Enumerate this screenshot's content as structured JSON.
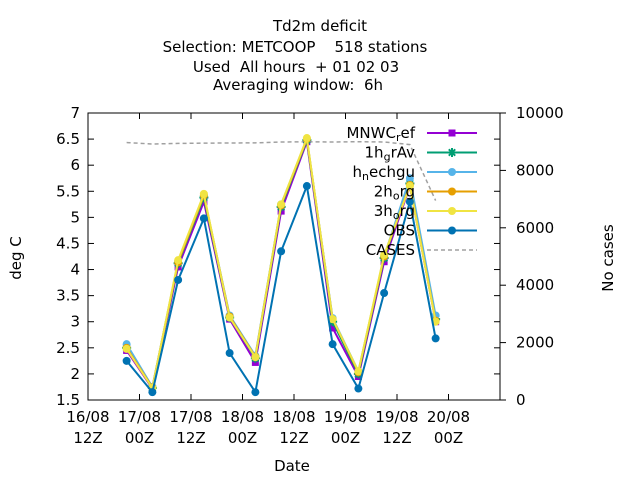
{
  "chart_data": {
    "type": "line",
    "title_lines": [
      "Td2m deficit",
      "Selection: METCOOP    518 stations",
      "Used  All hours  + 01 02 03",
      "Averaging window:  6h"
    ],
    "xlabel": "Date",
    "ylabel": "deg C",
    "y2label": "No cases",
    "xlim": [
      0,
      8
    ],
    "ylim": [
      1.5,
      7
    ],
    "y2lim": [
      0,
      10000
    ],
    "x_ticks": [
      {
        "x": 0,
        "line1": "16/08",
        "line2": "12Z"
      },
      {
        "x": 1,
        "line1": "17/08",
        "line2": "00Z"
      },
      {
        "x": 2,
        "line1": "17/08",
        "line2": "12Z"
      },
      {
        "x": 3,
        "line1": "18/08",
        "line2": "00Z"
      },
      {
        "x": 4,
        "line1": "18/08",
        "line2": "12Z"
      },
      {
        "x": 5,
        "line1": "19/08",
        "line2": "00Z"
      },
      {
        "x": 6,
        "line1": "19/08",
        "line2": "12Z"
      },
      {
        "x": 7,
        "line1": "20/08",
        "line2": "00Z"
      }
    ],
    "y_ticks": [
      1.5,
      2,
      2.5,
      3,
      3.5,
      4,
      4.5,
      5,
      5.5,
      6,
      6.5,
      7
    ],
    "y_tick_labels": [
      "1.5",
      "2",
      "2.5",
      "3",
      "3.5",
      "4",
      "4.5",
      "5",
      "5.5",
      "6",
      "6.5",
      "7"
    ],
    "y2_ticks": [
      0,
      2000,
      4000,
      6000,
      8000,
      10000
    ],
    "y2_tick_labels": [
      "0",
      "2000",
      "4000",
      "6000",
      "8000",
      "10000"
    ],
    "x": [
      0.75,
      1.25,
      1.75,
      2.25,
      2.75,
      3.25,
      3.75,
      4.25,
      4.75,
      5.25,
      5.75,
      6.25,
      6.75
    ],
    "legend_position": "top-right",
    "series": [
      {
        "name": "MNWC_ref",
        "legend_parts": [
          [
            "MNWC",
            false
          ],
          [
            "r",
            true
          ],
          [
            "ef",
            false
          ]
        ],
        "color": "#9400d3",
        "marker": "square",
        "values": [
          2.45,
          1.72,
          4.05,
          5.3,
          3.05,
          2.22,
          5.12,
          6.45,
          2.88,
          1.95,
          4.15,
          5.6,
          3.0
        ]
      },
      {
        "name": "1h_grAv",
        "legend_parts": [
          [
            "1h",
            false
          ],
          [
            "g",
            true
          ],
          [
            "rAv",
            false
          ]
        ],
        "color": "#009e73",
        "marker": "star",
        "values": [
          2.5,
          1.73,
          4.12,
          5.38,
          3.08,
          2.3,
          5.2,
          6.48,
          3.0,
          2.0,
          4.22,
          5.65,
          3.05
        ]
      },
      {
        "name": "h_nechgu",
        "legend_parts": [
          [
            "h",
            false
          ],
          [
            "n",
            true
          ],
          [
            "echgu",
            false
          ]
        ],
        "color": "#56b4e9",
        "marker": "circle",
        "values": [
          2.57,
          1.75,
          4.15,
          5.42,
          3.12,
          2.35,
          5.25,
          6.5,
          3.07,
          2.05,
          4.25,
          5.75,
          3.12
        ]
      },
      {
        "name": "2h_org",
        "legend_parts": [
          [
            "2h",
            false
          ],
          [
            "o",
            true
          ],
          [
            "rg",
            false
          ]
        ],
        "color": "#e69f00",
        "marker": "circle",
        "values": [
          2.5,
          1.74,
          4.14,
          5.42,
          3.1,
          2.33,
          5.23,
          6.5,
          3.05,
          2.03,
          4.25,
          5.62,
          3.02
        ]
      },
      {
        "name": "3h_org",
        "legend_parts": [
          [
            "3h",
            false
          ],
          [
            "o",
            true
          ],
          [
            "rg",
            false
          ]
        ],
        "color": "#f0e442",
        "marker": "circle",
        "values": [
          2.48,
          1.73,
          4.18,
          5.45,
          3.08,
          2.32,
          5.25,
          6.52,
          3.05,
          2.05,
          4.28,
          5.6,
          3.0
        ]
      },
      {
        "name": "OBS",
        "legend_parts": [
          [
            "OBS",
            false
          ]
        ],
        "color": "#0072b2",
        "marker": "circle",
        "values": [
          2.25,
          1.65,
          3.8,
          4.98,
          2.4,
          1.65,
          4.35,
          5.6,
          2.57,
          1.72,
          3.55,
          5.3,
          2.68
        ]
      }
    ],
    "cases": {
      "name": "CASES",
      "color": "#a0a0a0",
      "axis": "y2",
      "x": [
        0.75,
        1.25,
        1.75,
        2.25,
        2.75,
        3.25,
        3.75,
        4.25,
        4.75,
        5.25,
        5.75,
        6.25,
        6.75
      ],
      "values": [
        8970,
        8920,
        8940,
        8950,
        8955,
        8960,
        8990,
        8995,
        8990,
        9000,
        8990,
        8900,
        6950
      ]
    }
  }
}
